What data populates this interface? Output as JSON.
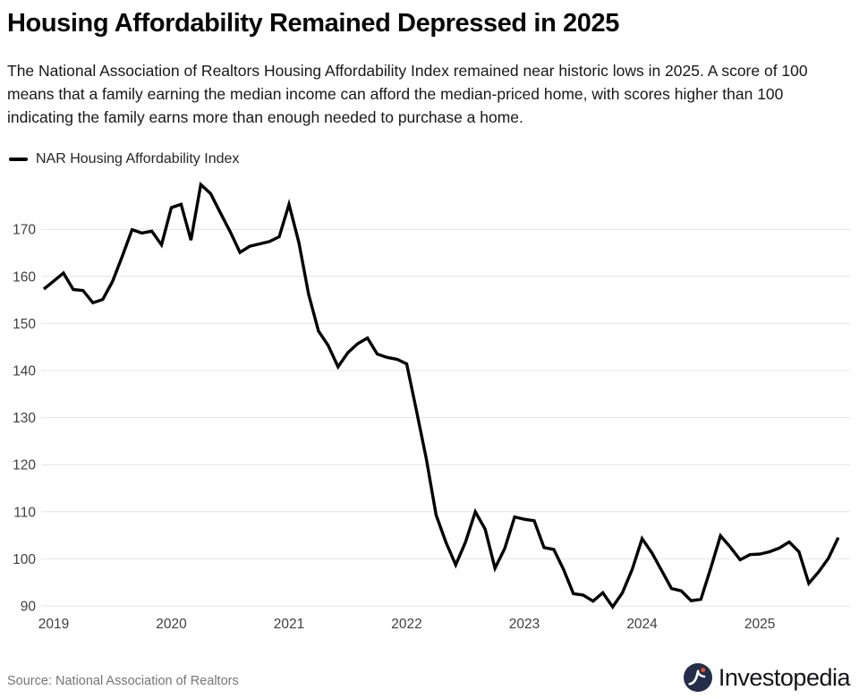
{
  "header": {
    "title": "Housing Affordability Remained Depressed in 2025",
    "description": "The National Association of Realtors Housing Affordability Index remained near historic lows in 2025. A score of 100 means that a family earning the median income can afford the median-priced home, with scores higher than 100 indicating the family earns more than enough needed to purchase a home."
  },
  "legend": {
    "label": "NAR Housing Affordability Index"
  },
  "footer": {
    "source": "Source: National Association of Realtors",
    "brand": "Investopedia"
  },
  "colors": {
    "line": "#000000",
    "grid": "#e4e4e4",
    "axis_text": "#3f3f3f",
    "logo_navy": "#232e4a",
    "logo_orange": "#e0502e"
  },
  "chart_data": {
    "type": "line",
    "title": "Housing Affordability Remained Depressed in 2025",
    "series_name": "NAR Housing Affordability Index",
    "xlabel": "",
    "ylabel": "",
    "grid": true,
    "legend_position": "top-left",
    "ylim": [
      88.3,
      180.9
    ],
    "y_ticks": [
      90,
      100,
      110,
      120,
      130,
      140,
      150,
      160,
      170
    ],
    "x_tick_labels": [
      "2019",
      "2020",
      "2021",
      "2022",
      "2023",
      "2024",
      "2025"
    ],
    "tick_month_indices": [
      1,
      13,
      25,
      37,
      49,
      61,
      73
    ],
    "months": [
      "2018-12",
      "2019-01",
      "2019-02",
      "2019-03",
      "2019-04",
      "2019-05",
      "2019-06",
      "2019-07",
      "2019-08",
      "2019-09",
      "2019-10",
      "2019-11",
      "2019-12",
      "2020-01",
      "2020-02",
      "2020-03",
      "2020-04",
      "2020-05",
      "2020-06",
      "2020-07",
      "2020-08",
      "2020-09",
      "2020-10",
      "2020-11",
      "2020-12",
      "2021-01",
      "2021-02",
      "2021-03",
      "2021-04",
      "2021-05",
      "2021-06",
      "2021-07",
      "2021-08",
      "2021-09",
      "2021-10",
      "2021-11",
      "2021-12",
      "2022-01",
      "2022-02",
      "2022-03",
      "2022-04",
      "2022-05",
      "2022-06",
      "2022-07",
      "2022-08",
      "2022-09",
      "2022-10",
      "2022-11",
      "2022-12",
      "2023-01",
      "2023-02",
      "2023-03",
      "2023-04",
      "2023-05",
      "2023-06",
      "2023-07",
      "2023-08",
      "2023-09",
      "2023-10",
      "2023-11",
      "2023-12",
      "2024-01",
      "2024-02",
      "2024-03",
      "2024-04",
      "2024-05",
      "2024-06",
      "2024-07",
      "2024-08",
      "2024-09",
      "2024-10",
      "2024-11",
      "2024-12",
      "2025-01",
      "2025-02",
      "2025-03",
      "2025-04",
      "2025-05",
      "2025-06",
      "2025-07",
      "2025-08",
      "2025-09"
    ],
    "values": [
      157.3,
      159.0,
      160.7,
      157.2,
      157.0,
      154.4,
      155.1,
      158.9,
      164.3,
      169.9,
      169.2,
      169.6,
      166.7,
      174.6,
      175.3,
      167.7,
      179.5,
      177.6,
      173.5,
      169.5,
      165.1,
      166.4,
      166.9,
      167.4,
      168.4,
      175.3,
      167.2,
      156.2,
      148.4,
      145.3,
      140.8,
      143.8,
      145.7,
      146.9,
      143.5,
      142.8,
      142.4,
      141.4,
      131.4,
      121.3,
      109.3,
      103.5,
      98.7,
      103.6,
      110.0,
      106.3,
      98.0,
      102.2,
      108.9,
      108.4,
      108.1,
      102.4,
      102.0,
      97.7,
      92.6,
      92.3,
      91.0,
      92.8,
      89.8,
      92.8,
      97.8,
      104.3,
      101.3,
      97.5,
      93.7,
      93.2,
      91.1,
      91.4,
      98.0,
      104.9,
      102.5,
      99.8,
      100.9,
      101.0,
      101.5,
      102.3,
      103.6,
      101.5,
      94.8,
      97.2,
      100.1,
      104.5
    ]
  }
}
